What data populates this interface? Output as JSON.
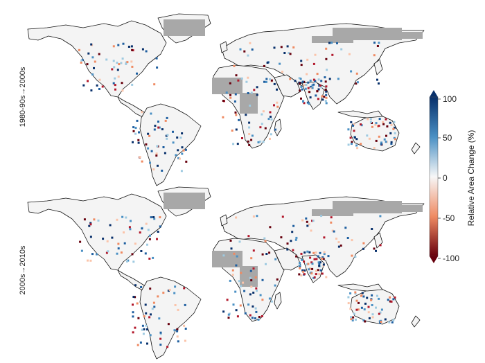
{
  "panels": [
    {
      "id": "top",
      "label": "1980-90s→2000s"
    },
    {
      "id": "bottom",
      "label": "2000s→2010s"
    }
  ],
  "legend": {
    "title": "Relative Area Change (%)",
    "ticks": [
      "100",
      "50",
      "0",
      "-50",
      "-100"
    ],
    "range": [
      -100,
      100
    ],
    "colors": {
      "high": "#08306b",
      "mid": "#f7f7f7",
      "low": "#67000d",
      "nodata": "#a8a8a8",
      "land": "#f4f4f4",
      "outline": "#111111"
    }
  }
}
